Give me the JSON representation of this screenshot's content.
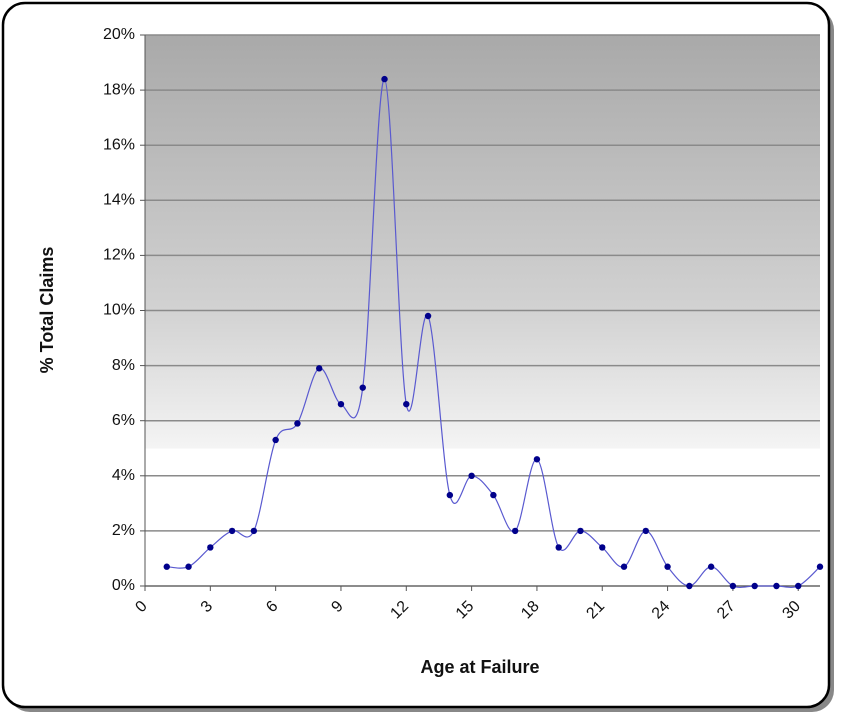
{
  "chart_data": {
    "type": "line",
    "x_label": "Age at Failure",
    "y_label": "% Total Claims",
    "x": [
      1,
      2,
      3,
      4,
      5,
      6,
      7,
      8,
      9,
      10,
      11,
      12,
      13,
      14,
      15,
      16,
      17,
      18,
      19,
      20,
      21,
      22,
      23,
      24,
      25,
      26,
      27,
      28,
      29,
      30,
      31
    ],
    "values": [
      0.7,
      0.7,
      1.4,
      2.0,
      2.0,
      5.3,
      5.9,
      7.9,
      6.6,
      7.2,
      18.4,
      6.6,
      9.8,
      3.3,
      4.0,
      3.3,
      2.0,
      4.6,
      1.4,
      2.0,
      1.4,
      0.7,
      2.0,
      0.7,
      0,
      0.7,
      0,
      0,
      0,
      0,
      0.7
    ],
    "color": "#00008b",
    "xlim": [
      0,
      31
    ],
    "xticks": [
      0,
      3,
      6,
      9,
      12,
      15,
      18,
      21,
      24,
      27,
      30
    ],
    "ylim": [
      0,
      20
    ],
    "yticks": [
      {
        "value": 0,
        "label": "0%"
      },
      {
        "value": 2,
        "label": "2%"
      },
      {
        "value": 4,
        "label": "4%"
      },
      {
        "value": 6,
        "label": "6%"
      },
      {
        "value": 8,
        "label": "8%"
      },
      {
        "value": 10,
        "label": "10%"
      },
      {
        "value": 12,
        "label": "12%"
      },
      {
        "value": 14,
        "label": "14%"
      },
      {
        "value": 16,
        "label": "16%"
      },
      {
        "value": 18,
        "label": "18%"
      },
      {
        "value": 20,
        "label": "20%"
      }
    ],
    "grid": true,
    "smooth": true
  }
}
